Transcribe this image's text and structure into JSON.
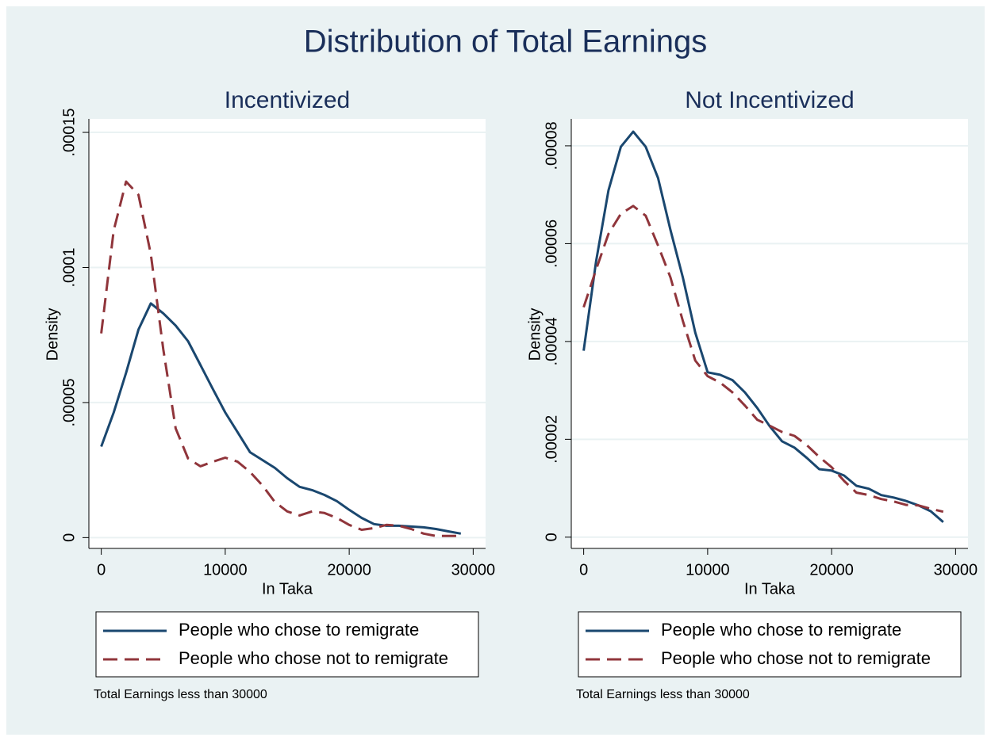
{
  "title": "Distribution of Total Earnings",
  "chart_data": [
    {
      "type": "line",
      "title": "Incentivized",
      "x_label": "In Taka",
      "y_label": "Density",
      "note": "Total Earnings less than 30000",
      "legend": "bottom",
      "grid": true,
      "x": [
        0,
        1000,
        2000,
        3000,
        4000,
        5000,
        6000,
        7000,
        8000,
        9000,
        10000,
        11000,
        12000,
        13000,
        14000,
        15000,
        16000,
        17000,
        18000,
        19000,
        20000,
        21000,
        22000,
        23000,
        24000,
        25000,
        26000,
        27000,
        28000,
        29000
      ],
      "series": [
        {
          "name": "People who chose to remigrate",
          "color": "#1a476f",
          "style": "solid",
          "values": [
            3.37e-05,
            4.63e-05,
            6.1e-05,
            7.7e-05,
            8.67e-05,
            8.3e-05,
            7.85e-05,
            7.27e-05,
            6.39e-05,
            5.5e-05,
            4.63e-05,
            3.9e-05,
            3.16e-05,
            2.87e-05,
            2.58e-05,
            2.2e-05,
            1.88e-05,
            1.76e-05,
            1.58e-05,
            1.35e-05,
            1.03e-05,
            7.3e-06,
            5e-06,
            4.4e-06,
            4.4e-06,
            4.1e-06,
            3.8e-06,
            3.2e-06,
            2.3e-06,
            1.5e-06
          ]
        },
        {
          "name": "People who chose not to remigrate",
          "color": "#90353b",
          "style": "dashed",
          "values": [
            7.56e-05,
            0.0001137,
            0.0001318,
            0.0001269,
            0.0001049,
            6.97e-05,
            4.04e-05,
            2.93e-05,
            2.64e-05,
            2.81e-05,
            2.96e-05,
            2.81e-05,
            2.43e-05,
            1.93e-05,
            1.32e-05,
            9.7e-06,
            8.2e-06,
            9.7e-06,
            9.1e-06,
            7.3e-06,
            4.7e-06,
            2.9e-06,
            3.5e-06,
            4.7e-06,
            4.4e-06,
            3.2e-06,
            1.5e-06,
            6e-07,
            6e-07,
            6e-07
          ]
        }
      ],
      "xlim": [
        -1000,
        31000
      ],
      "xticks": [
        0,
        10000,
        20000,
        30000
      ],
      "ylim": [
        -4e-06,
        0.000155
      ],
      "yticks": [
        0,
        {
          "value": 5e-05,
          "label": ".00005"
        },
        {
          "value": 0.0001,
          "label": ".0001"
        },
        {
          "value": 0.00015,
          "label": ".00015"
        }
      ]
    },
    {
      "type": "line",
      "title": "Not Incentivized",
      "x_label": "In Taka",
      "y_label": "Density",
      "note": "Total Earnings less than 30000",
      "legend": "bottom",
      "grid": true,
      "x": [
        0,
        1000,
        2000,
        3000,
        4000,
        5000,
        6000,
        7000,
        8000,
        9000,
        10000,
        11000,
        12000,
        13000,
        14000,
        15000,
        16000,
        17000,
        18000,
        19000,
        20000,
        21000,
        22000,
        23000,
        24000,
        25000,
        26000,
        27000,
        28000,
        29000
      ],
      "series": [
        {
          "name": "People who chose to remigrate",
          "color": "#1a476f",
          "style": "solid",
          "values": [
            3.81e-05,
            5.64e-05,
            7.09e-05,
            7.98e-05,
            8.29e-05,
            7.98e-05,
            7.34e-05,
            6.28e-05,
            5.31e-05,
            4.18e-05,
            3.37e-05,
            3.32e-05,
            3.21e-05,
            2.96e-05,
            2.64e-05,
            2.27e-05,
            1.96e-05,
            1.83e-05,
            1.62e-05,
            1.39e-05,
            1.36e-05,
            1.26e-05,
            1.05e-05,
            9.9e-06,
            8.6e-06,
            8.1e-06,
            7.4e-06,
            6.5e-06,
            5.3e-06,
            3.1e-06
          ]
        },
        {
          "name": "People who chose not to remigrate",
          "color": "#90353b",
          "style": "dashed",
          "values": [
            4.7e-05,
            5.47e-05,
            6.2e-05,
            6.61e-05,
            6.77e-05,
            6.57e-05,
            5.96e-05,
            5.31e-05,
            4.42e-05,
            3.61e-05,
            3.29e-05,
            3.16e-05,
            2.96e-05,
            2.69e-05,
            2.4e-05,
            2.28e-05,
            2.15e-05,
            2.07e-05,
            1.88e-05,
            1.64e-05,
            1.43e-05,
            1.15e-05,
            9.1e-06,
            8.6e-06,
            7.8e-06,
            7.3e-06,
            6.6e-06,
            6.5e-06,
            5.8e-06,
            5.2e-06
          ]
        }
      ],
      "xlim": [
        -1000,
        31000
      ],
      "xticks": [
        0,
        10000,
        20000,
        30000
      ],
      "ylim": [
        -2.3e-06,
        8.55e-05
      ],
      "yticks": [
        0,
        {
          "value": 2e-05,
          "label": ".00002"
        },
        {
          "value": 4e-05,
          "label": ".00004"
        },
        {
          "value": 6e-05,
          "label": ".00006"
        },
        {
          "value": 8e-05,
          "label": ".00008"
        }
      ]
    }
  ]
}
